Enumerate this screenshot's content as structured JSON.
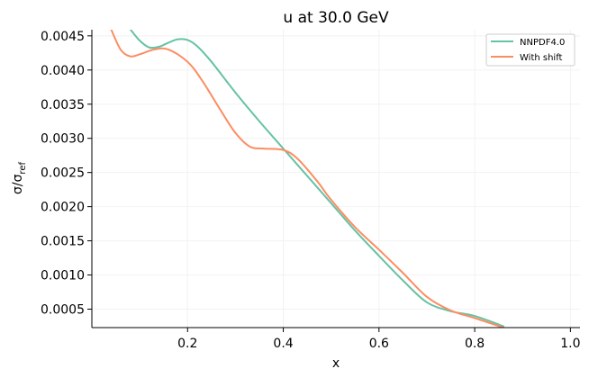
{
  "chart_data": {
    "type": "line",
    "title": "u at 30.0 GeV",
    "xlabel": "x",
    "ylabel_main": "σ/σ",
    "ylabel_sub": "ref",
    "xlim": [
      0.0,
      1.02
    ],
    "ylim": [
      0.00023,
      0.00459
    ],
    "xticks": [
      0.2,
      0.4,
      0.6,
      0.8,
      1.0
    ],
    "xtick_labels": [
      "0.2",
      "0.4",
      "0.6",
      "0.8",
      "1.0"
    ],
    "yticks": [
      0.0005,
      0.001,
      0.0015,
      0.002,
      0.0025,
      0.003,
      0.0035,
      0.004,
      0.0045
    ],
    "ytick_labels": [
      "0.0005",
      "0.0010",
      "0.0015",
      "0.0020",
      "0.0025",
      "0.0030",
      "0.0035",
      "0.0040",
      "0.0045"
    ],
    "grid": true,
    "legend_position": "top-right",
    "series": [
      {
        "name": "NNPDF4.0",
        "color": "#66c2a5",
        "x": [
          0.08,
          0.1,
          0.12,
          0.14,
          0.16,
          0.18,
          0.2,
          0.22,
          0.25,
          0.3,
          0.35,
          0.4,
          0.45,
          0.5,
          0.55,
          0.6,
          0.65,
          0.7,
          0.75,
          0.8,
          0.86
        ],
        "y": [
          0.0046,
          0.00443,
          0.00433,
          0.00434,
          0.0044,
          0.00445,
          0.00444,
          0.00435,
          0.00412,
          0.00367,
          0.00325,
          0.00285,
          0.00245,
          0.00205,
          0.00165,
          0.00128,
          0.00092,
          0.0006,
          0.00047,
          0.0004,
          0.00025
        ]
      },
      {
        "name": "With shift",
        "color": "#fc8d62",
        "x": [
          0.04,
          0.06,
          0.08,
          0.1,
          0.13,
          0.16,
          0.2,
          0.23,
          0.27,
          0.3,
          0.33,
          0.36,
          0.4,
          0.43,
          0.47,
          0.5,
          0.55,
          0.6,
          0.65,
          0.7,
          0.75,
          0.8,
          0.86
        ],
        "y": [
          0.0046,
          0.0043,
          0.0042,
          0.00423,
          0.0043,
          0.0043,
          0.00412,
          0.00385,
          0.0034,
          0.00308,
          0.00288,
          0.00285,
          0.00283,
          0.0027,
          0.00238,
          0.0021,
          0.0017,
          0.00137,
          0.00103,
          0.00068,
          0.00048,
          0.00037,
          0.00023
        ]
      }
    ]
  }
}
